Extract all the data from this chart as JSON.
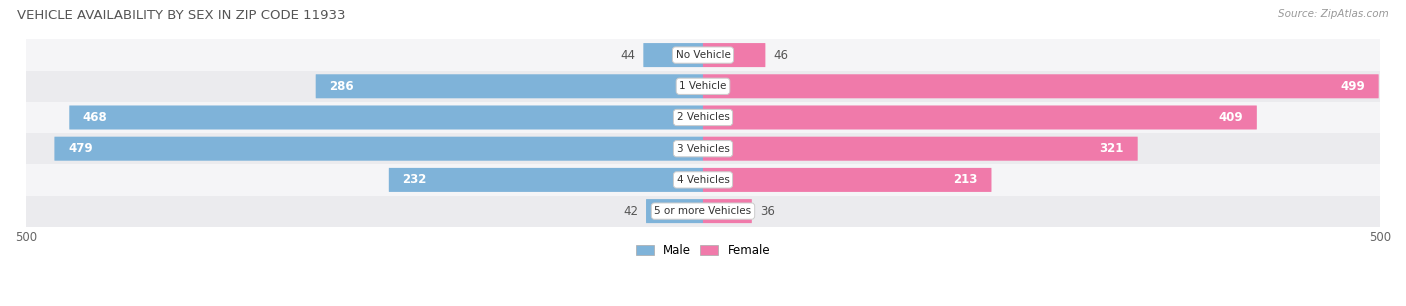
{
  "title": "VEHICLE AVAILABILITY BY SEX IN ZIP CODE 11933",
  "source": "Source: ZipAtlas.com",
  "categories": [
    "No Vehicle",
    "1 Vehicle",
    "2 Vehicles",
    "3 Vehicles",
    "4 Vehicles",
    "5 or more Vehicles"
  ],
  "male_values": [
    44,
    286,
    468,
    479,
    232,
    42
  ],
  "female_values": [
    46,
    499,
    409,
    321,
    213,
    36
  ],
  "male_color": "#7fb3d9",
  "female_color": "#f07aaa",
  "x_max": 500,
  "title_fontsize": 9.5,
  "label_fontsize": 8.5,
  "tick_fontsize": 8.5,
  "legend_fontsize": 8.5,
  "source_fontsize": 7.5,
  "bar_height": 0.62,
  "category_label_fontsize": 7.5,
  "row_even_color": "#f5f5f7",
  "row_odd_color": "#ebebee"
}
